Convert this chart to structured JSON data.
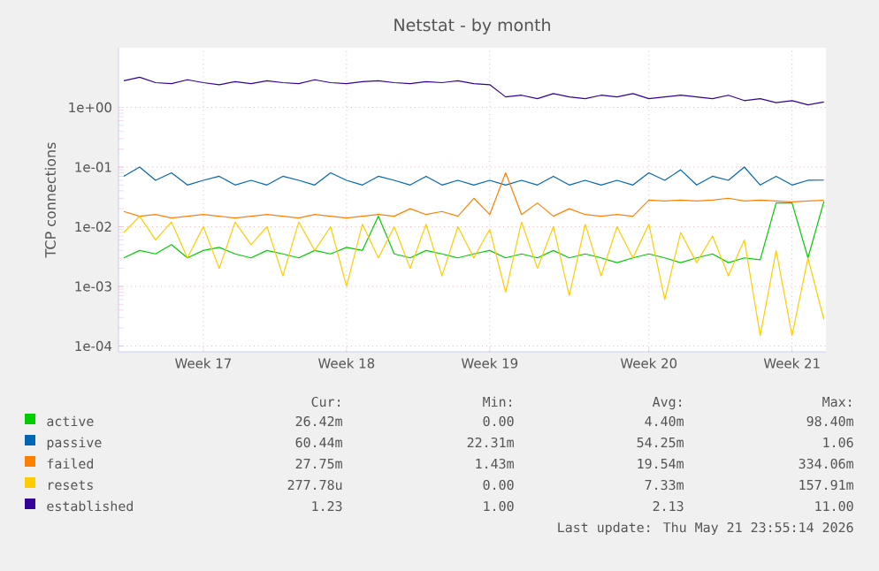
{
  "chart_data": {
    "type": "line",
    "title": "Netstat - by month",
    "ylabel": "TCP connections",
    "categories": [
      null,
      null,
      null,
      null,
      null,
      "Week 17",
      null,
      null,
      null,
      null,
      null,
      null,
      null,
      null,
      "Week 18",
      null,
      null,
      null,
      null,
      null,
      null,
      null,
      null,
      "Week 19",
      null,
      null,
      null,
      null,
      null,
      null,
      null,
      null,
      null,
      "Week 20",
      null,
      null,
      null,
      null,
      null,
      null,
      null,
      null,
      "Week 21",
      null,
      null
    ],
    "log": true,
    "ylim": [
      8e-05,
      10
    ],
    "yticks": [
      {
        "value": 0.0001,
        "label": "1e-04"
      },
      {
        "value": 0.001,
        "label": "1e-03"
      },
      {
        "value": 0.01,
        "label": "1e-02"
      },
      {
        "value": 0.1,
        "label": "1e-01"
      },
      {
        "value": 1,
        "label": "1e+00"
      }
    ],
    "grid": true,
    "legend": "bottom",
    "marker": "none",
    "line_style": "solid",
    "series": [
      {
        "name": "active",
        "color": "#00cc00",
        "values": [
          0.003,
          0.004,
          0.0035,
          0.005,
          0.003,
          0.004,
          0.0045,
          0.0035,
          0.003,
          0.004,
          0.0035,
          0.003,
          0.004,
          0.0035,
          0.0045,
          0.004,
          0.015,
          0.0035,
          0.003,
          0.004,
          0.0035,
          0.003,
          0.0035,
          0.004,
          0.003,
          0.0035,
          0.003,
          0.004,
          0.003,
          0.0035,
          0.003,
          0.0025,
          0.003,
          0.0035,
          0.003,
          0.0025,
          0.003,
          0.0035,
          0.0025,
          0.003,
          0.0028,
          0.025,
          0.025,
          0.003,
          0.02642
        ]
      },
      {
        "name": "passive",
        "color": "#0066b3",
        "values": [
          0.07,
          0.1,
          0.06,
          0.08,
          0.05,
          0.06,
          0.07,
          0.05,
          0.06,
          0.05,
          0.07,
          0.06,
          0.05,
          0.08,
          0.06,
          0.05,
          0.07,
          0.06,
          0.05,
          0.07,
          0.05,
          0.06,
          0.05,
          0.06,
          0.05,
          0.06,
          0.05,
          0.07,
          0.05,
          0.06,
          0.05,
          0.06,
          0.05,
          0.08,
          0.06,
          0.09,
          0.05,
          0.07,
          0.06,
          0.1,
          0.05,
          0.07,
          0.05,
          0.06,
          0.06044
        ]
      },
      {
        "name": "failed",
        "color": "#ff8000",
        "values": [
          0.018,
          0.015,
          0.016,
          0.014,
          0.015,
          0.016,
          0.015,
          0.014,
          0.015,
          0.016,
          0.015,
          0.014,
          0.016,
          0.015,
          0.014,
          0.015,
          0.016,
          0.015,
          0.02,
          0.016,
          0.018,
          0.015,
          0.03,
          0.016,
          0.08,
          0.016,
          0.025,
          0.015,
          0.02,
          0.016,
          0.015,
          0.016,
          0.015,
          0.028,
          0.027,
          0.028,
          0.027,
          0.028,
          0.03,
          0.027,
          0.028,
          0.027,
          0.026,
          0.027,
          0.02775
        ]
      },
      {
        "name": "resets",
        "color": "#ffcc00",
        "values": [
          0.008,
          0.015,
          0.006,
          0.012,
          0.003,
          0.01,
          0.002,
          0.012,
          0.005,
          0.01,
          0.0015,
          0.012,
          0.004,
          0.01,
          0.001,
          0.011,
          0.003,
          0.01,
          0.002,
          0.011,
          0.0015,
          0.01,
          0.003,
          0.009,
          0.0008,
          0.012,
          0.002,
          0.01,
          0.0007,
          0.011,
          0.0015,
          0.01,
          0.003,
          0.011,
          0.0006,
          0.008,
          0.0025,
          0.007,
          0.0015,
          0.006,
          0.00015,
          0.004,
          0.00015,
          0.003,
          0.00027778
        ]
      },
      {
        "name": "established",
        "color": "#330099",
        "values": [
          2.8,
          3.2,
          2.6,
          2.5,
          2.9,
          2.6,
          2.4,
          2.7,
          2.5,
          2.8,
          2.6,
          2.5,
          2.9,
          2.6,
          2.5,
          2.7,
          2.8,
          2.6,
          2.5,
          2.7,
          2.6,
          2.8,
          2.5,
          2.4,
          1.5,
          1.6,
          1.4,
          1.7,
          1.5,
          1.4,
          1.6,
          1.5,
          1.7,
          1.4,
          1.5,
          1.6,
          1.5,
          1.4,
          1.6,
          1.3,
          1.4,
          1.2,
          1.3,
          1.1,
          1.23
        ]
      }
    ],
    "annotations": [
      "Cur:",
      "Min:",
      "Avg:",
      "Max:",
      "26.42m",
      "0.00",
      "4.40m",
      "98.40m",
      "60.44m",
      "22.31m",
      "54.25m",
      "1.06",
      "27.75m",
      "1.43m",
      "19.54m",
      "334.06m",
      "277.78u",
      "0.00",
      "7.33m",
      "157.91m",
      "1.23",
      "1.00",
      "2.13",
      "11.00",
      "Last update: Thu May 21 23:55:14 2026"
    ]
  }
}
